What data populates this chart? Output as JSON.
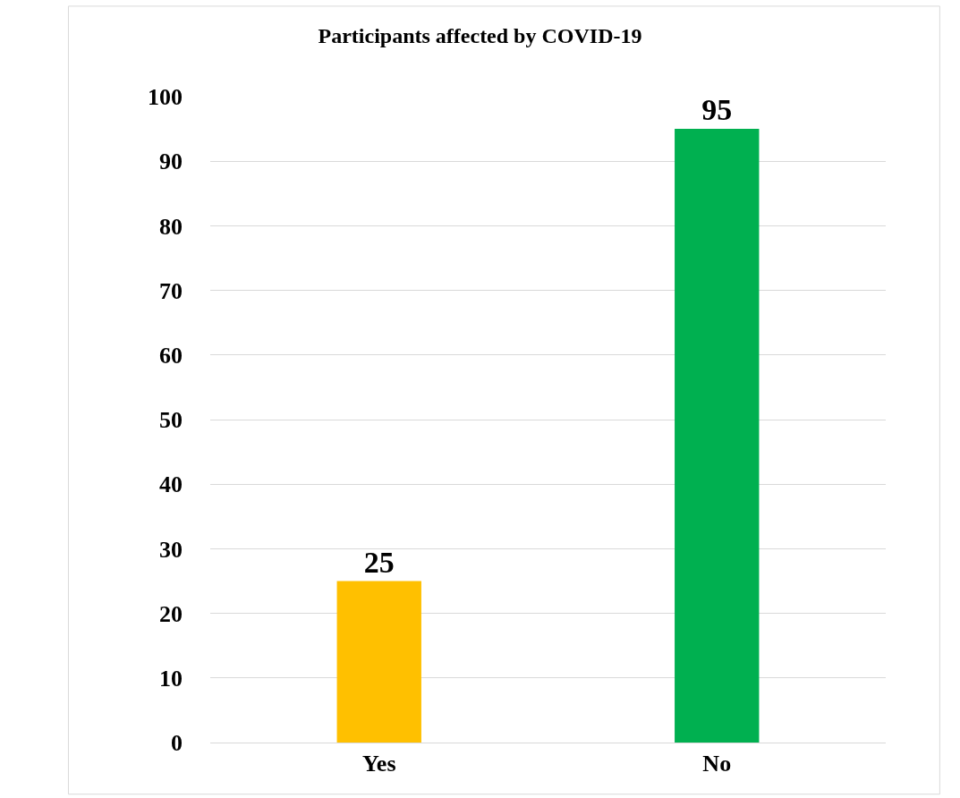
{
  "chart_data": {
    "type": "bar",
    "title": "Participants affected by COVID-19",
    "categories": [
      "Yes",
      "No"
    ],
    "values": [
      25,
      95
    ],
    "colors": [
      "#ffc000",
      "#00b050"
    ],
    "ylim": [
      0,
      100
    ],
    "yticks": [
      0,
      10,
      20,
      30,
      40,
      50,
      60,
      70,
      80,
      90,
      100
    ],
    "grid": "y",
    "data_labels": true
  }
}
